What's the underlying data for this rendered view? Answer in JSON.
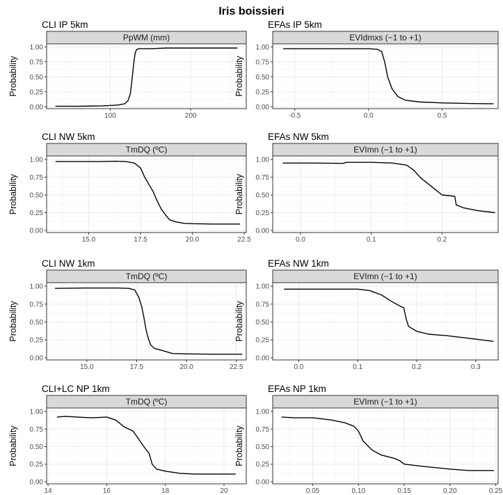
{
  "title": "Iris boissieri",
  "chart_data": [
    {
      "type": "line",
      "panel_title": "CLI IP 5km",
      "strip": "PpWM (mm)",
      "ylabel": "Probability",
      "xlim": [
        21,
        269
      ],
      "ylim": [
        -0.03,
        1.05
      ],
      "x_ticks": [
        100,
        200
      ],
      "x_tick_labels": [
        "100",
        "200"
      ],
      "y_ticks": [
        0,
        0.25,
        0.5,
        0.75,
        1
      ],
      "y_tick_labels": [
        "0.00",
        "0.25",
        "0.50",
        "0.75",
        "1.00"
      ],
      "grid": true,
      "series": [
        {
          "x": [
            32,
            60,
            90,
            110,
            118,
            122,
            125,
            127,
            129,
            131,
            133,
            136,
            140,
            150,
            170,
            200,
            230,
            258
          ],
          "y": [
            0.01,
            0.01,
            0.015,
            0.03,
            0.05,
            0.1,
            0.22,
            0.45,
            0.7,
            0.9,
            0.96,
            0.97,
            0.97,
            0.97,
            0.98,
            0.98,
            0.98,
            0.98
          ]
        }
      ]
    },
    {
      "type": "line",
      "panel_title": "EFAs IP 5km",
      "strip": "EVIdmxs (−1 to +1)",
      "ylabel": "Probability",
      "xlim": [
        -0.65,
        0.88
      ],
      "ylim": [
        -0.03,
        1.05
      ],
      "x_ticks": [
        -0.5,
        0,
        0.5
      ],
      "x_tick_labels": [
        "-0.5",
        "0.0",
        "0.5"
      ],
      "y_ticks": [
        0,
        0.25,
        0.5,
        0.75,
        1
      ],
      "y_tick_labels": [
        "0.00",
        "0.25",
        "0.50",
        "0.75",
        "1.00"
      ],
      "grid": true,
      "series": [
        {
          "x": [
            -0.58,
            -0.4,
            -0.2,
            0.0,
            0.06,
            0.09,
            0.11,
            0.13,
            0.16,
            0.2,
            0.25,
            0.35,
            0.5,
            0.7,
            0.85
          ],
          "y": [
            0.97,
            0.97,
            0.97,
            0.97,
            0.96,
            0.92,
            0.75,
            0.5,
            0.3,
            0.17,
            0.11,
            0.08,
            0.065,
            0.055,
            0.05
          ]
        }
      ]
    },
    {
      "type": "line",
      "panel_title": "CLI NW 5km",
      "strip": "TmDQ (ºC)",
      "ylabel": "Probability",
      "xlim": [
        12.97,
        22.6
      ],
      "ylim": [
        -0.03,
        1.05
      ],
      "x_ticks": [
        15,
        17.5,
        20,
        22.5
      ],
      "x_tick_labels": [
        "15.0",
        "17.5",
        "20.0",
        "22.5"
      ],
      "y_ticks": [
        0,
        0.25,
        0.5,
        0.75,
        1
      ],
      "y_tick_labels": [
        "0.00",
        "0.25",
        "0.50",
        "0.75",
        "1.00"
      ],
      "grid": true,
      "series": [
        {
          "x": [
            13.4,
            14.5,
            15.5,
            16.3,
            16.8,
            17.2,
            17.5,
            17.7,
            17.9,
            18.1,
            18.3,
            18.5,
            18.7,
            18.9,
            19.2,
            19.6,
            20.0,
            21.0,
            22.3
          ],
          "y": [
            0.97,
            0.97,
            0.97,
            0.975,
            0.97,
            0.95,
            0.88,
            0.75,
            0.65,
            0.55,
            0.42,
            0.3,
            0.22,
            0.15,
            0.12,
            0.1,
            0.095,
            0.09,
            0.09
          ]
        }
      ]
    },
    {
      "type": "line",
      "panel_title": "EFAs NW 5km",
      "strip": "EVImn (−1 to +1)",
      "ylabel": "Probability",
      "xlim": [
        -0.0393,
        0.2793
      ],
      "ylim": [
        -0.03,
        1.05
      ],
      "x_ticks": [
        0,
        0.1,
        0.2
      ],
      "x_tick_labels": [
        "0.0",
        "0.1",
        "0.2"
      ],
      "y_ticks": [
        0,
        0.25,
        0.5,
        0.75,
        1
      ],
      "y_tick_labels": [
        "0.00",
        "0.25",
        "0.50",
        "0.75",
        "1.00"
      ],
      "grid": true,
      "series": [
        {
          "x": [
            -0.025,
            0.02,
            0.06,
            0.065,
            0.1,
            0.13,
            0.15,
            0.16,
            0.17,
            0.18,
            0.19,
            0.2,
            0.21,
            0.218,
            0.22,
            0.23,
            0.25,
            0.275
          ],
          "y": [
            0.95,
            0.95,
            0.945,
            0.96,
            0.96,
            0.95,
            0.92,
            0.85,
            0.74,
            0.66,
            0.58,
            0.5,
            0.49,
            0.48,
            0.36,
            0.32,
            0.28,
            0.25
          ]
        }
      ]
    },
    {
      "type": "line",
      "panel_title": "CLI NW 1km",
      "strip": "TmDQ (ºC)",
      "ylabel": "Probability",
      "xlim": [
        12.98,
        23.0
      ],
      "ylim": [
        -0.03,
        1.05
      ],
      "x_ticks": [
        15,
        17.5,
        20,
        22.5
      ],
      "x_tick_labels": [
        "15.0",
        "17.5",
        "20.0",
        "22.5"
      ],
      "y_ticks": [
        0,
        0.25,
        0.5,
        0.75,
        1
      ],
      "y_tick_labels": [
        "0.00",
        "0.25",
        "0.50",
        "0.75",
        "1.00"
      ],
      "grid": true,
      "series": [
        {
          "x": [
            13.4,
            15.0,
            16.5,
            17.1,
            17.4,
            17.6,
            17.75,
            17.85,
            17.95,
            18.05,
            18.2,
            18.4,
            18.8,
            19.3,
            20.0,
            21.5,
            22.8
          ],
          "y": [
            0.97,
            0.975,
            0.975,
            0.97,
            0.95,
            0.85,
            0.72,
            0.58,
            0.42,
            0.3,
            0.18,
            0.13,
            0.1,
            0.06,
            0.055,
            0.05,
            0.05
          ]
        }
      ]
    },
    {
      "type": "line",
      "panel_title": "EFAs NW 1km",
      "strip": "EVImn (−1 to +1)",
      "ylabel": "Probability",
      "xlim": [
        -0.044,
        0.338
      ],
      "ylim": [
        -0.03,
        1.05
      ],
      "x_ticks": [
        0,
        0.1,
        0.2,
        0.3
      ],
      "x_tick_labels": [
        "0.0",
        "0.1",
        "0.2",
        "0.3"
      ],
      "y_ticks": [
        0,
        0.25,
        0.5,
        0.75,
        1
      ],
      "y_tick_labels": [
        "0.00",
        "0.25",
        "0.50",
        "0.75",
        "1.00"
      ],
      "grid": true,
      "series": [
        {
          "x": [
            -0.025,
            0.03,
            0.1,
            0.12,
            0.14,
            0.155,
            0.17,
            0.178,
            0.182,
            0.186,
            0.2,
            0.22,
            0.25,
            0.28,
            0.31,
            0.33
          ],
          "y": [
            0.96,
            0.96,
            0.96,
            0.94,
            0.88,
            0.8,
            0.73,
            0.7,
            0.55,
            0.44,
            0.37,
            0.33,
            0.31,
            0.28,
            0.25,
            0.23
          ]
        }
      ]
    },
    {
      "type": "line",
      "panel_title": "CLI+LC NP 1km",
      "strip": "TmDQ (ºC)",
      "ylabel": "Probability",
      "xlim": [
        13.95,
        20.76
      ],
      "ylim": [
        -0.03,
        1.05
      ],
      "x_ticks": [
        14,
        16,
        18,
        20
      ],
      "x_tick_labels": [
        "14",
        "16",
        "18",
        "20"
      ],
      "y_ticks": [
        0,
        0.25,
        0.5,
        0.75,
        1
      ],
      "y_tick_labels": [
        "0.00",
        "0.25",
        "0.50",
        "0.75",
        "1.00"
      ],
      "grid": true,
      "series": [
        {
          "x": [
            14.3,
            14.6,
            15.0,
            15.5,
            16.0,
            16.3,
            16.6,
            16.9,
            17.1,
            17.3,
            17.45,
            17.55,
            17.7,
            18.0,
            18.5,
            19.0,
            20.4
          ],
          "y": [
            0.92,
            0.93,
            0.92,
            0.91,
            0.92,
            0.88,
            0.78,
            0.72,
            0.6,
            0.48,
            0.4,
            0.25,
            0.18,
            0.15,
            0.12,
            0.11,
            0.11
          ]
        }
      ]
    },
    {
      "type": "line",
      "panel_title": "EFAs NP 1km",
      "strip": "EVImn (−1 to +1)",
      "ylabel": "Probability",
      "xlim": [
        0.0063,
        0.2526
      ],
      "ylim": [
        -0.03,
        1.05
      ],
      "x_ticks": [
        0.05,
        0.1,
        0.15,
        0.2,
        0.25
      ],
      "x_tick_labels": [
        "0.05",
        "0.10",
        "0.15",
        "0.20",
        "0.25"
      ],
      "y_ticks": [
        0,
        0.25,
        0.5,
        0.75,
        1
      ],
      "y_tick_labels": [
        "0.00",
        "0.25",
        "0.50",
        "0.75",
        "1.00"
      ],
      "grid": true,
      "series": [
        {
          "x": [
            0.016,
            0.03,
            0.05,
            0.07,
            0.085,
            0.095,
            0.1,
            0.105,
            0.115,
            0.125,
            0.14,
            0.145,
            0.15,
            0.17,
            0.2,
            0.22,
            0.248
          ],
          "y": [
            0.92,
            0.91,
            0.91,
            0.88,
            0.84,
            0.79,
            0.72,
            0.58,
            0.45,
            0.38,
            0.33,
            0.3,
            0.25,
            0.22,
            0.18,
            0.16,
            0.16
          ]
        }
      ]
    }
  ]
}
